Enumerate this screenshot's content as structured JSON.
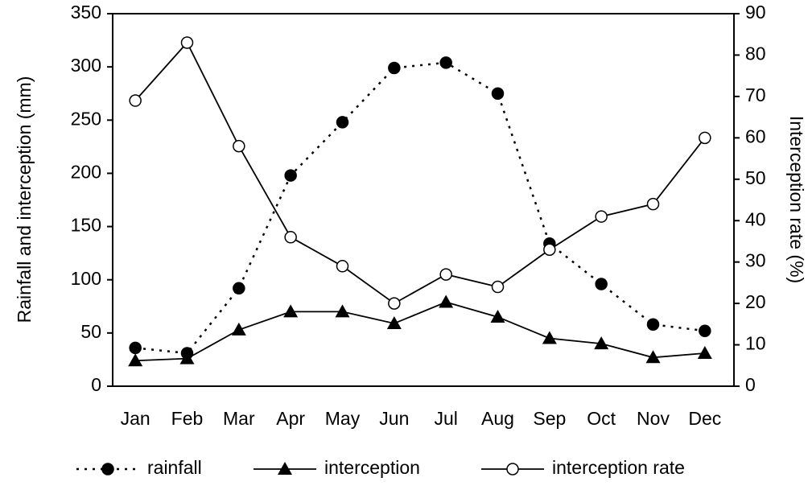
{
  "chart_data": {
    "type": "line",
    "categories": [
      "Jan",
      "Feb",
      "Mar",
      "Apr",
      "May",
      "Jun",
      "Jul",
      "Aug",
      "Sep",
      "Oct",
      "Nov",
      "Dec"
    ],
    "series": [
      {
        "name": "rainfall",
        "color": "#000000",
        "line_style": "dotted",
        "marker": "filled-circle",
        "values": [
          36,
          31,
          92,
          198,
          248,
          299,
          304,
          275,
          134,
          96,
          58,
          52
        ]
      },
      {
        "name": "interception",
        "color": "#000000",
        "line_style": "solid",
        "marker": "filled-triangle",
        "values": [
          24,
          26,
          53,
          70,
          70,
          59,
          79,
          65,
          45,
          40,
          27,
          31
        ]
      },
      {
        "name": "interception rate",
        "color": "#000000",
        "line_style": "solid",
        "marker": "open-circle",
        "axis": "y2",
        "values": [
          69,
          83,
          58,
          36,
          29,
          20,
          27,
          24,
          33,
          41,
          44,
          60
        ]
      }
    ],
    "y_label": "Rainfall and interception (mm)",
    "y2_label": "Interception rate (%)",
    "ylim": [
      0,
      350
    ],
    "yticks": [
      0,
      50,
      100,
      150,
      200,
      250,
      300,
      350
    ],
    "y2lim": [
      0,
      90
    ],
    "y2ticks": [
      0,
      10,
      20,
      30,
      40,
      50,
      60,
      70,
      80,
      90
    ],
    "grid": false,
    "legend": "bottom"
  }
}
